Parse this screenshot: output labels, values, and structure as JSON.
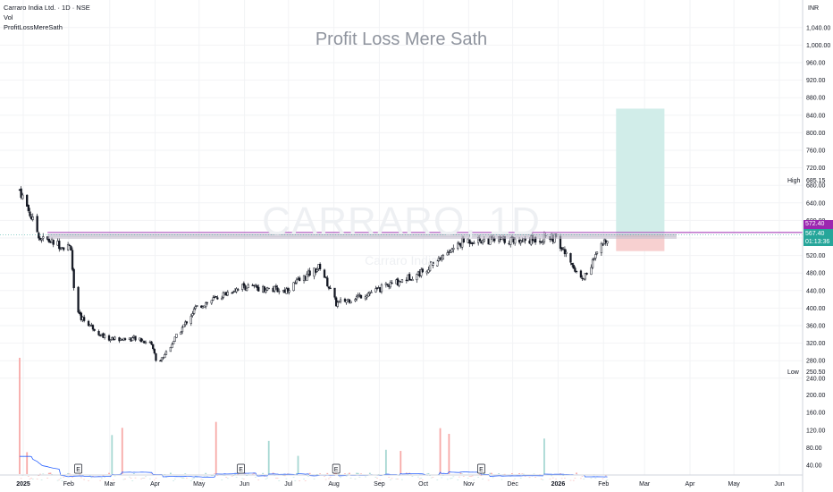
{
  "header": {
    "symbol_line": "Carraro India Ltd. · 1D · NSE",
    "volume_label": "Vol",
    "indicator_label": "ProfitLossMereSath"
  },
  "watermark": {
    "title": "Profit Loss Mere Sath",
    "symbol": "CARRARO, 1D",
    "company": "Carraro India"
  },
  "currency": "INR",
  "markers": {
    "high": {
      "label": "High",
      "value": "685.15"
    },
    "low": {
      "label": "Low",
      "value": "250.50"
    },
    "target": {
      "value": "572.40"
    },
    "last": {
      "value": "567.40",
      "countdown": "01:13:36"
    }
  },
  "earnings_marker_label": "E",
  "chart_data": {
    "type": "candlestick",
    "price_axis": {
      "ticks": [
        "1,040.00",
        "1,000.00",
        "960.00",
        "920.00",
        "880.00",
        "840.00",
        "800.00",
        "760.00",
        "720.00",
        "680.00",
        "640.00",
        "600.00",
        "560.00",
        "520.00",
        "480.00",
        "440.00",
        "400.00",
        "360.00",
        "320.00",
        "280.00",
        "240.00"
      ]
    },
    "volume_axis": {
      "ticks": [
        "200.00",
        "160.00",
        "120.00",
        "80.00",
        "40.00"
      ]
    },
    "time_axis": [
      "2025",
      "Feb",
      "Mar",
      "Apr",
      "May",
      "Jun",
      "Jul",
      "Aug",
      "Sep",
      "Oct",
      "Nov",
      "Dec",
      "2026",
      "Feb",
      "Mar",
      "Apr",
      "May",
      "Jun"
    ],
    "key_points": [
      {
        "date": "2025-01-01",
        "close": 670
      },
      {
        "date": "2025-01-15",
        "close": 560
      },
      {
        "date": "2025-02-01",
        "close": 540
      },
      {
        "date": "2025-02-05",
        "close": 540
      },
      {
        "date": "2025-02-08",
        "close": 390
      },
      {
        "date": "2025-03-01",
        "close": 330
      },
      {
        "date": "2025-03-20",
        "close": 330
      },
      {
        "date": "2025-04-01",
        "close": 320
      },
      {
        "date": "2025-04-05",
        "close": 270
      },
      {
        "date": "2025-05-01",
        "close": 400
      },
      {
        "date": "2025-06-01",
        "close": 450
      },
      {
        "date": "2025-07-01",
        "close": 440
      },
      {
        "date": "2025-07-25",
        "close": 495
      },
      {
        "date": "2025-08-05",
        "close": 410
      },
      {
        "date": "2025-09-01",
        "close": 440
      },
      {
        "date": "2025-10-01",
        "close": 480
      },
      {
        "date": "2025-11-01",
        "close": 555
      },
      {
        "date": "2025-12-01",
        "close": 555
      },
      {
        "date": "2026-01-01",
        "close": 560
      },
      {
        "date": "2026-01-20",
        "close": 465
      },
      {
        "date": "2026-02-07",
        "close": 568
      }
    ],
    "high": 685.15,
    "low": 250.5,
    "last": 567.4,
    "resistance_level": 572.4,
    "position_tool": {
      "entry": 567.4,
      "target": 855,
      "stop": 530
    },
    "colors": {
      "up": "#26a69a",
      "down": "#ef5350",
      "candle": "#131722",
      "volume_up": "#a7d8d3",
      "volume_down": "#f7a9a7",
      "volume_ma": "#2962ff",
      "resistance": "#9c27b0",
      "target_zone": "#d1ede9",
      "stop_zone": "#f7d0d0"
    }
  }
}
